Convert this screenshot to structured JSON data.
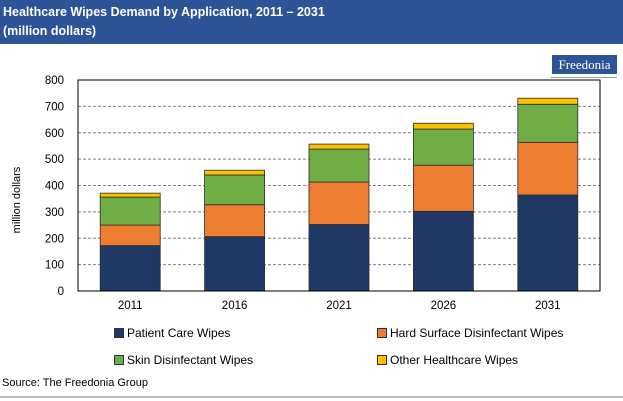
{
  "header": {
    "title": "Healthcare Wipes Demand by Application, 2011 – 2031",
    "subtitle": "(million dollars)"
  },
  "logo": {
    "text": "Freedonia"
  },
  "source": "Source: The Freedonia Group",
  "chart_data": {
    "type": "bar",
    "stacked": true,
    "title": "Healthcare Wipes Demand by Application, 2011 – 2031",
    "subtitle": "(million dollars)",
    "xlabel": "",
    "ylabel": "million dollars",
    "ylim": [
      0,
      800
    ],
    "yticks": [
      0,
      100,
      200,
      300,
      400,
      500,
      600,
      700,
      800
    ],
    "grid": "horizontal-dashed",
    "legend_position": "bottom",
    "categories": [
      "2011",
      "2016",
      "2021",
      "2026",
      "2031"
    ],
    "series": [
      {
        "name": "Patient Care Wipes",
        "color": "#1f3864",
        "values": [
          172,
          206,
          252,
          302,
          364
        ]
      },
      {
        "name": "Hard Surface Disinfectant Wipes",
        "color": "#ed7d31",
        "values": [
          78,
          121,
          161,
          175,
          200
        ]
      },
      {
        "name": "Skin Disinfectant Wipes",
        "color": "#70ad47",
        "values": [
          106,
          113,
          125,
          137,
          144
        ]
      },
      {
        "name": "Other Healthcare Wipes",
        "color": "#ffc000",
        "values": [
          15,
          18,
          19,
          22,
          23
        ]
      }
    ]
  }
}
